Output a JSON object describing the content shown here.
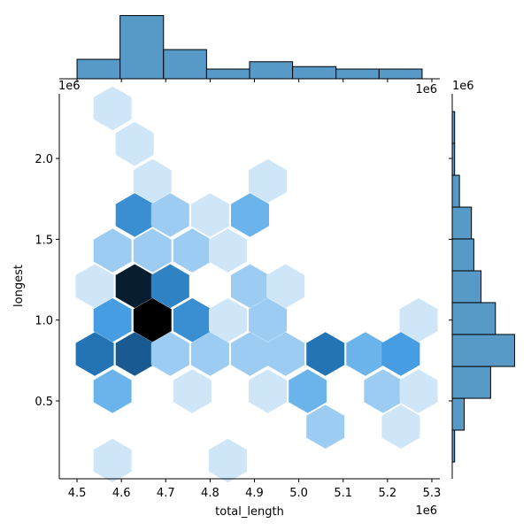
{
  "chart_data": [
    {
      "type": "hexbin",
      "xlabel": "total_length",
      "ylabel": "longest",
      "x": [
        4.58,
        4.63,
        4.67,
        4.93,
        4.63,
        4.71,
        4.8,
        4.89,
        4.58,
        4.67,
        4.76,
        4.84,
        4.54,
        4.63,
        4.71,
        4.89,
        4.97,
        4.58,
        4.67,
        4.76,
        4.84,
        4.93,
        5.27,
        4.54,
        4.63,
        4.71,
        4.8,
        4.89,
        4.97,
        5.06,
        5.15,
        5.23,
        4.58,
        4.76,
        4.93,
        5.02,
        5.19,
        5.27,
        5.06,
        5.23,
        4.58,
        4.84
      ],
      "y": [
        2.31,
        2.09,
        1.86,
        1.86,
        1.65,
        1.65,
        1.65,
        1.65,
        1.43,
        1.43,
        1.43,
        1.43,
        1.21,
        1.21,
        1.21,
        1.21,
        1.21,
        1.0,
        1.0,
        1.0,
        1.0,
        1.0,
        1.0,
        0.79,
        0.79,
        0.79,
        0.79,
        0.79,
        0.79,
        0.79,
        0.79,
        0.79,
        0.56,
        0.56,
        0.56,
        0.56,
        0.56,
        0.56,
        0.34,
        0.34,
        0.13,
        0.13
      ],
      "values": [
        1,
        1,
        1,
        1,
        5,
        2,
        1,
        3,
        2,
        2,
        2,
        1,
        1,
        10,
        6,
        2,
        1,
        4,
        11,
        5,
        1,
        2,
        1,
        7,
        8,
        2,
        2,
        2,
        2,
        7,
        3,
        4,
        3,
        1,
        1,
        3,
        2,
        1,
        2,
        1,
        1,
        1
      ],
      "colormap": [
        "#ffffff",
        "#4aa2e6",
        "#1f6fb0",
        "#000000"
      ],
      "xlim": [
        4.46,
        5.318
      ],
      "ylim": [
        0.018,
        2.4
      ],
      "xticks": [
        4.5,
        4.6,
        4.7,
        4.8,
        4.9,
        {
          "value": 5,
          "label": "5.0"
        },
        5.1,
        5.2,
        5.3
      ],
      "yticks": [
        0.5,
        {
          "value": 1,
          "label": "1.0"
        },
        1.5,
        {
          "value": 2,
          "label": "2.0"
        }
      ],
      "x_offset": "1e6",
      "y_offset": "1e6"
    },
    {
      "type": "histogram",
      "orientation": "vertical",
      "bins": [
        4.5,
        4.597,
        4.695,
        4.792,
        4.889,
        4.986,
        5.084,
        5.181,
        5.278
      ],
      "values": [
        8,
        26,
        12,
        4,
        7,
        5,
        4,
        4
      ],
      "color": "#5799c7",
      "edgecolor": "#000000",
      "xlim": [
        4.46,
        5.318
      ],
      "ylim": [
        0,
        27.3
      ],
      "x_offset": "1e6"
    },
    {
      "type": "histogram",
      "orientation": "horizontal",
      "bins": [
        0.122,
        0.319,
        0.516,
        0.713,
        0.911,
        1.108,
        1.305,
        1.502,
        1.699,
        1.896,
        2.093,
        2.29
      ],
      "values": [
        1,
        5,
        16,
        26,
        18,
        12,
        9,
        8,
        3,
        1,
        1
      ],
      "color": "#5799c7",
      "edgecolor": "#000000",
      "ylim": [
        0.018,
        2.4
      ],
      "xlim": [
        0,
        27.3
      ],
      "y_offset": "1e6"
    }
  ]
}
